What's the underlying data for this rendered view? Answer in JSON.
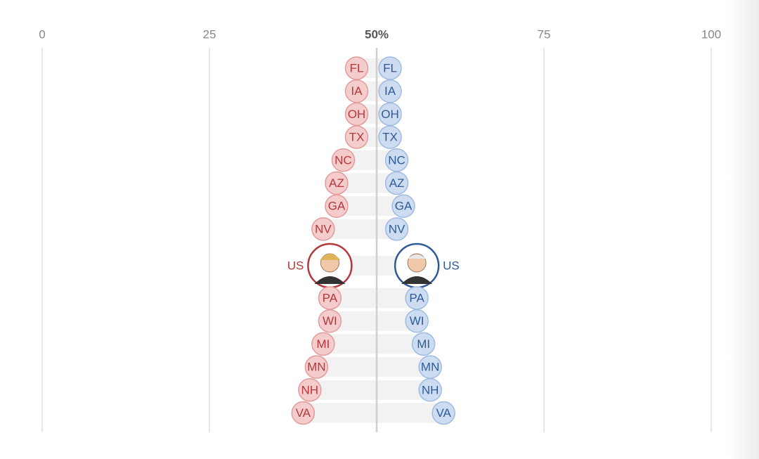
{
  "chart_data": {
    "type": "dotplot",
    "categories": [
      "FL",
      "IA",
      "OH",
      "TX",
      "NC",
      "AZ",
      "GA",
      "NV",
      "US",
      "PA",
      "WI",
      "MI",
      "MN",
      "NH",
      "VA"
    ],
    "series": [
      {
        "color": "#b5373a",
        "values": [
          47,
          47,
          47,
          47,
          45,
          44,
          44,
          42,
          43,
          43,
          43,
          42,
          41,
          40,
          39
        ]
      },
      {
        "color": "#2e5b98",
        "values": [
          52,
          52,
          52,
          52,
          53,
          53,
          54,
          53,
          56,
          56,
          56,
          57,
          58,
          58,
          60
        ]
      }
    ],
    "xlim": [
      0,
      100
    ],
    "xticks": [
      0,
      25,
      {
        "value": 50,
        "label": "50%"
      },
      75,
      100
    ],
    "grid": true
  }
}
